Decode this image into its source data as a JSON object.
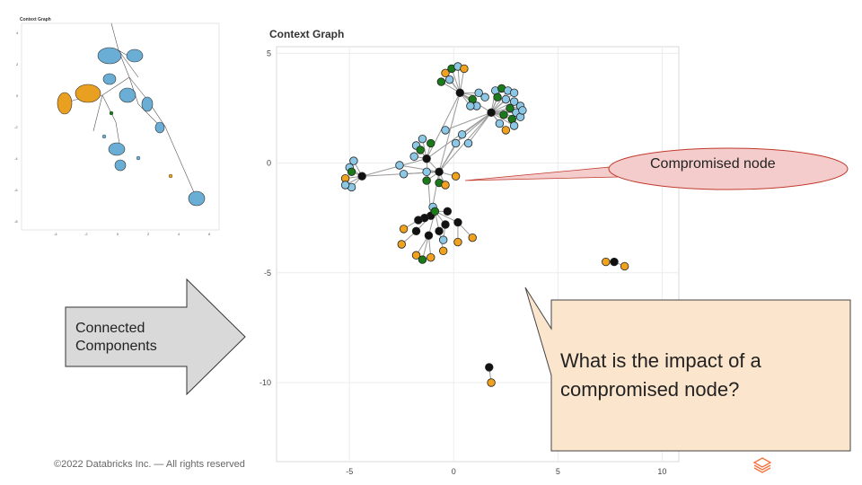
{
  "thumbnail": {
    "title": "Context Graph",
    "y_ticks": [
      "4",
      "2",
      "0",
      "-2",
      "-4",
      "-6",
      "-8"
    ],
    "x_ticks": [
      "-4",
      "-2",
      "0",
      "2",
      "4",
      "6"
    ]
  },
  "chart_data": {
    "type": "scatter",
    "title": "Context Graph",
    "xlim": [
      -8.5,
      10.8
    ],
    "ylim": [
      -13.6,
      5.3
    ],
    "x_ticks": [
      -5,
      0,
      5,
      10
    ],
    "y_ticks": [
      5,
      0,
      -5,
      -10
    ],
    "x_tick_labels": [
      "-5",
      "0",
      "5",
      "10"
    ],
    "y_tick_labels": [
      "5",
      "0",
      "-5",
      "-10"
    ],
    "grid": true,
    "colors": {
      "blue": "#8cc7e6",
      "green": "#1a7a1a",
      "orange": "#f0a21e",
      "black": "#111111",
      "edge": "#999999"
    },
    "nodes": [
      {
        "id": "h1",
        "x": 0.3,
        "y": 3.2,
        "c": "black"
      },
      {
        "id": "h2",
        "x": 1.8,
        "y": 2.3,
        "c": "black"
      },
      {
        "id": "h3",
        "x": -0.7,
        "y": -0.4,
        "c": "black"
      },
      {
        "id": "h4",
        "x": -1.3,
        "y": 0.2,
        "c": "black"
      },
      {
        "id": "h5",
        "x": -4.4,
        "y": -0.6,
        "c": "black"
      },
      {
        "id": "h6",
        "x": -1.1,
        "y": -2.4,
        "c": "black"
      },
      {
        "id": "a1",
        "x": -0.4,
        "y": 4.1,
        "c": "orange"
      },
      {
        "id": "a2",
        "x": -0.1,
        "y": 4.3,
        "c": "green"
      },
      {
        "id": "a3",
        "x": 0.2,
        "y": 4.4,
        "c": "blue"
      },
      {
        "id": "a4",
        "x": 0.5,
        "y": 4.3,
        "c": "orange"
      },
      {
        "id": "a5",
        "x": -0.6,
        "y": 3.7,
        "c": "green"
      },
      {
        "id": "a6",
        "x": -0.2,
        "y": 3.8,
        "c": "blue"
      },
      {
        "id": "b1",
        "x": 0.9,
        "y": 2.9,
        "c": "green"
      },
      {
        "id": "b2",
        "x": 1.1,
        "y": 2.6,
        "c": "blue"
      },
      {
        "id": "b3",
        "x": 0.8,
        "y": 2.6,
        "c": "blue"
      },
      {
        "id": "b4",
        "x": 1.2,
        "y": 3.2,
        "c": "blue"
      },
      {
        "id": "b5",
        "x": 1.5,
        "y": 3.0,
        "c": "blue"
      },
      {
        "id": "c1",
        "x": 2.0,
        "y": 3.3,
        "c": "blue"
      },
      {
        "id": "c2",
        "x": 2.3,
        "y": 3.4,
        "c": "green"
      },
      {
        "id": "c3",
        "x": 2.6,
        "y": 3.3,
        "c": "blue"
      },
      {
        "id": "c4",
        "x": 2.9,
        "y": 3.2,
        "c": "blue"
      },
      {
        "id": "c5",
        "x": 2.1,
        "y": 3.0,
        "c": "green"
      },
      {
        "id": "c6",
        "x": 2.5,
        "y": 2.9,
        "c": "blue"
      },
      {
        "id": "c7",
        "x": 2.9,
        "y": 2.8,
        "c": "blue"
      },
      {
        "id": "c8",
        "x": 3.2,
        "y": 2.6,
        "c": "blue"
      },
      {
        "id": "c9",
        "x": 2.7,
        "y": 2.5,
        "c": "green"
      },
      {
        "id": "c10",
        "x": 3.0,
        "y": 2.3,
        "c": "blue"
      },
      {
        "id": "c11",
        "x": 2.4,
        "y": 2.2,
        "c": "green"
      },
      {
        "id": "c12",
        "x": 2.8,
        "y": 2.0,
        "c": "green"
      },
      {
        "id": "c13",
        "x": 3.2,
        "y": 2.1,
        "c": "blue"
      },
      {
        "id": "c14",
        "x": 2.2,
        "y": 1.8,
        "c": "blue"
      },
      {
        "id": "c15",
        "x": 2.5,
        "y": 1.5,
        "c": "orange"
      },
      {
        "id": "c16",
        "x": 2.9,
        "y": 1.7,
        "c": "blue"
      },
      {
        "id": "c17",
        "x": 3.3,
        "y": 2.4,
        "c": "blue"
      },
      {
        "id": "d1",
        "x": -1.8,
        "y": 0.8,
        "c": "blue"
      },
      {
        "id": "d2",
        "x": -1.5,
        "y": 1.1,
        "c": "blue"
      },
      {
        "id": "d3",
        "x": -1.9,
        "y": 0.3,
        "c": "blue"
      },
      {
        "id": "d4",
        "x": -1.1,
        "y": 0.9,
        "c": "green"
      },
      {
        "id": "d5",
        "x": -1.6,
        "y": 0.6,
        "c": "green"
      },
      {
        "id": "d6",
        "x": -0.4,
        "y": 1.5,
        "c": "blue"
      },
      {
        "id": "d7",
        "x": 0.4,
        "y": 1.3,
        "c": "blue"
      },
      {
        "id": "d8",
        "x": 0.1,
        "y": 0.9,
        "c": "blue"
      },
      {
        "id": "d9",
        "x": 0.7,
        "y": 0.9,
        "c": "blue"
      },
      {
        "id": "d10",
        "x": -1.3,
        "y": -0.4,
        "c": "blue"
      },
      {
        "id": "d11",
        "x": -2.6,
        "y": -0.1,
        "c": "blue"
      },
      {
        "id": "d12",
        "x": -2.4,
        "y": -0.5,
        "c": "blue"
      },
      {
        "id": "d13",
        "x": -1.3,
        "y": -0.8,
        "c": "green"
      },
      {
        "id": "e1",
        "x": -0.7,
        "y": -0.9,
        "c": "green"
      },
      {
        "id": "e2",
        "x": -0.4,
        "y": -1.0,
        "c": "orange"
      },
      {
        "id": "e3",
        "x": 0.1,
        "y": -0.6,
        "c": "orange"
      },
      {
        "id": "f1",
        "x": -5.0,
        "y": -0.2,
        "c": "blue"
      },
      {
        "id": "f2",
        "x": -4.8,
        "y": 0.1,
        "c": "blue"
      },
      {
        "id": "f3",
        "x": -5.2,
        "y": -0.7,
        "c": "orange"
      },
      {
        "id": "f4",
        "x": -4.9,
        "y": -0.4,
        "c": "green"
      },
      {
        "id": "f5",
        "x": -4.9,
        "y": -1.1,
        "c": "blue"
      },
      {
        "id": "f6",
        "x": -5.2,
        "y": -1.0,
        "c": "blue"
      },
      {
        "id": "g1",
        "x": -1.0,
        "y": -2.0,
        "c": "blue"
      },
      {
        "id": "g2",
        "x": -0.9,
        "y": -2.2,
        "c": "green"
      },
      {
        "id": "g3",
        "x": -1.4,
        "y": -2.5,
        "c": "black"
      },
      {
        "id": "g4",
        "x": -1.7,
        "y": -2.6,
        "c": "black"
      },
      {
        "id": "g5",
        "x": -0.3,
        "y": -2.2,
        "c": "black"
      },
      {
        "id": "g6",
        "x": 0.2,
        "y": -2.7,
        "c": "black"
      },
      {
        "id": "g7",
        "x": -0.4,
        "y": -2.8,
        "c": "black"
      },
      {
        "id": "g8",
        "x": -1.8,
        "y": -3.1,
        "c": "black"
      },
      {
        "id": "g9",
        "x": -0.7,
        "y": -3.1,
        "c": "black"
      },
      {
        "id": "g10",
        "x": -1.2,
        "y": -3.3,
        "c": "black"
      },
      {
        "id": "g11",
        "x": -2.4,
        "y": -3.0,
        "c": "orange"
      },
      {
        "id": "g12",
        "x": -2.5,
        "y": -3.7,
        "c": "orange"
      },
      {
        "id": "g13",
        "x": -0.5,
        "y": -3.5,
        "c": "blue"
      },
      {
        "id": "g14",
        "x": 0.2,
        "y": -3.6,
        "c": "orange"
      },
      {
        "id": "g15",
        "x": 0.9,
        "y": -3.4,
        "c": "orange"
      },
      {
        "id": "g16",
        "x": -0.5,
        "y": -4.0,
        "c": "orange"
      },
      {
        "id": "g17",
        "x": -1.8,
        "y": -4.2,
        "c": "orange"
      },
      {
        "id": "g18",
        "x": -1.5,
        "y": -4.4,
        "c": "green"
      },
      {
        "id": "g19",
        "x": -1.1,
        "y": -4.3,
        "c": "orange"
      },
      {
        "id": "k1",
        "x": 7.3,
        "y": -4.5,
        "c": "orange"
      },
      {
        "id": "k2",
        "x": 7.7,
        "y": -4.5,
        "c": "black"
      },
      {
        "id": "k3",
        "x": 8.2,
        "y": -4.7,
        "c": "orange"
      },
      {
        "id": "m1",
        "x": 1.7,
        "y": -9.3,
        "c": "black"
      },
      {
        "id": "m2",
        "x": 1.8,
        "y": -10.0,
        "c": "orange"
      }
    ],
    "edges": [
      [
        "h1",
        "h2"
      ],
      [
        "h1",
        "h3"
      ],
      [
        "h2",
        "h3"
      ],
      [
        "h2",
        "h4"
      ],
      [
        "h1",
        "h4"
      ],
      [
        "h3",
        "h4"
      ],
      [
        "h3",
        "h5"
      ],
      [
        "h4",
        "h5"
      ],
      [
        "h3",
        "h6"
      ],
      [
        "h4",
        "h6"
      ],
      [
        "h1",
        "a1"
      ],
      [
        "h1",
        "a2"
      ],
      [
        "h1",
        "a3"
      ],
      [
        "h1",
        "a4"
      ],
      [
        "h1",
        "a5"
      ],
      [
        "h1",
        "a6"
      ],
      [
        "h1",
        "b1"
      ],
      [
        "h1",
        "b2"
      ],
      [
        "h1",
        "b3"
      ],
      [
        "h1",
        "b4"
      ],
      [
        "h1",
        "b5"
      ],
      [
        "h2",
        "c1"
      ],
      [
        "h2",
        "c2"
      ],
      [
        "h2",
        "c3"
      ],
      [
        "h2",
        "c4"
      ],
      [
        "h2",
        "c5"
      ],
      [
        "h2",
        "c6"
      ],
      [
        "h2",
        "c7"
      ],
      [
        "h2",
        "c8"
      ],
      [
        "h2",
        "c9"
      ],
      [
        "h2",
        "c10"
      ],
      [
        "h2",
        "c11"
      ],
      [
        "h2",
        "c12"
      ],
      [
        "h2",
        "c13"
      ],
      [
        "h2",
        "c14"
      ],
      [
        "h2",
        "c15"
      ],
      [
        "h2",
        "c16"
      ],
      [
        "h2",
        "c17"
      ],
      [
        "h2",
        "d6"
      ],
      [
        "h2",
        "d7"
      ],
      [
        "h2",
        "d8"
      ],
      [
        "h2",
        "d9"
      ],
      [
        "h3",
        "d8"
      ],
      [
        "h3",
        "d7"
      ],
      [
        "h4",
        "d1"
      ],
      [
        "h4",
        "d2"
      ],
      [
        "h4",
        "d3"
      ],
      [
        "h4",
        "d4"
      ],
      [
        "h4",
        "d5"
      ],
      [
        "h3",
        "d10"
      ],
      [
        "h3",
        "d11"
      ],
      [
        "h3",
        "d12"
      ],
      [
        "h3",
        "d13"
      ],
      [
        "h3",
        "e1"
      ],
      [
        "h3",
        "e2"
      ],
      [
        "h3",
        "e3"
      ],
      [
        "h5",
        "f1"
      ],
      [
        "h5",
        "f2"
      ],
      [
        "h5",
        "f3"
      ],
      [
        "h5",
        "f4"
      ],
      [
        "h5",
        "f5"
      ],
      [
        "h5",
        "f6"
      ],
      [
        "h6",
        "g1"
      ],
      [
        "g1",
        "g2"
      ],
      [
        "g2",
        "g3"
      ],
      [
        "g2",
        "g4"
      ],
      [
        "g2",
        "g5"
      ],
      [
        "g2",
        "g6"
      ],
      [
        "g2",
        "g7"
      ],
      [
        "g2",
        "g8"
      ],
      [
        "g2",
        "g9"
      ],
      [
        "g2",
        "g10"
      ],
      [
        "g4",
        "g11"
      ],
      [
        "g8",
        "g12"
      ],
      [
        "g7",
        "g13"
      ],
      [
        "g6",
        "g14"
      ],
      [
        "g6",
        "g15"
      ],
      [
        "g9",
        "g16"
      ],
      [
        "g10",
        "g17"
      ],
      [
        "g10",
        "g18"
      ],
      [
        "g10",
        "g19"
      ],
      [
        "k1",
        "k2"
      ],
      [
        "k2",
        "k3"
      ],
      [
        "m1",
        "m2"
      ]
    ]
  },
  "arrow": {
    "label_line1": "Connected",
    "label_line2": "Components"
  },
  "callout_top": {
    "label": "Compromised node"
  },
  "callout_big": {
    "label": "What is the impact of a compromised node?"
  },
  "footer": {
    "copyright": "©2022 Databricks Inc. — All rights reserved"
  },
  "logo": {
    "icon": "databricks-logo-icon",
    "color": "#f3733f"
  }
}
